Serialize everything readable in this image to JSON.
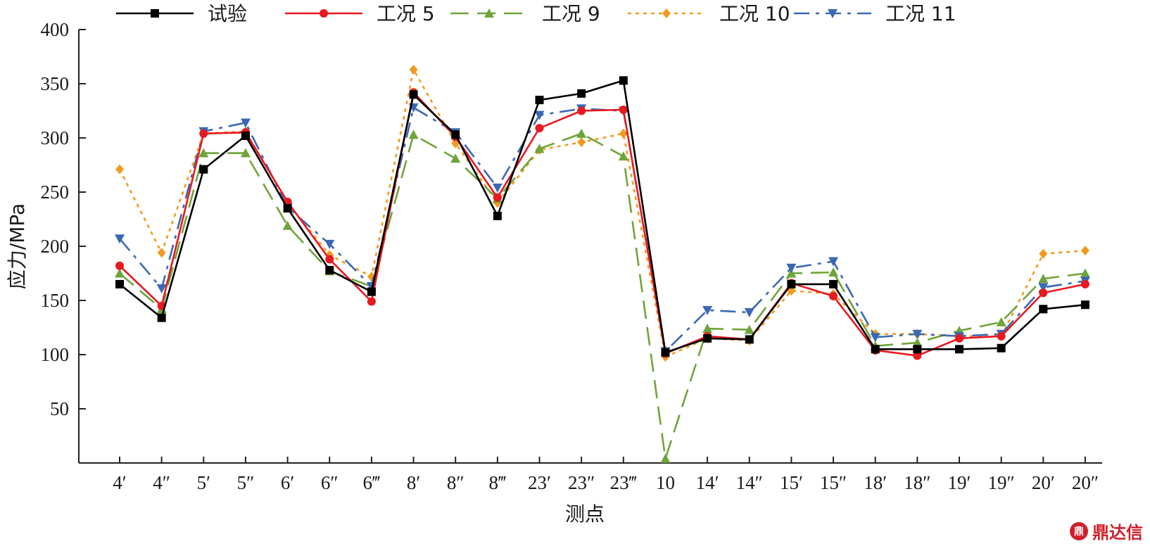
{
  "chart_data": {
    "type": "line",
    "xlabel": "测点",
    "ylabel": "应力/MPa",
    "ylim": [
      0,
      400
    ],
    "yticks": [
      50,
      100,
      150,
      200,
      250,
      300,
      350,
      400
    ],
    "grid": false,
    "legend_position": "top",
    "categories": [
      "4′",
      "4″",
      "5′",
      "5″",
      "6′",
      "6″",
      "6‴",
      "8′",
      "8″",
      "8‴",
      "23′",
      "23″",
      "23‴",
      "10",
      "14′",
      "14″",
      "15′",
      "15″",
      "18′",
      "18″",
      "19′",
      "19″",
      "20′",
      "20″"
    ],
    "series": [
      {
        "name": "试验",
        "color": "#000000",
        "marker": "square",
        "dash": "solid",
        "values": [
          165,
          134,
          271,
          302,
          235,
          178,
          158,
          340,
          303,
          228,
          335,
          341,
          353,
          102,
          115,
          114,
          165,
          165,
          105,
          105,
          105,
          106,
          142,
          146
        ]
      },
      {
        "name": "工况 5",
        "color": "#e8191f",
        "marker": "circle",
        "dash": "solid",
        "values": [
          182,
          145,
          304,
          305,
          241,
          188,
          149,
          342,
          301,
          245,
          309,
          325,
          326,
          101,
          117,
          114,
          166,
          154,
          104,
          99,
          115,
          117,
          157,
          165
        ]
      },
      {
        "name": "工况 9",
        "color": "#6ea43a",
        "marker": "triangle-up",
        "dash": "long-dash",
        "values": [
          175,
          142,
          286,
          286,
          219,
          177,
          163,
          303,
          281,
          244,
          290,
          304,
          283,
          4,
          124,
          123,
          175,
          176,
          108,
          111,
          122,
          130,
          170,
          175
        ]
      },
      {
        "name": "工况 10",
        "color": "#f39a1e",
        "marker": "diamond",
        "dash": "dotted",
        "values": [
          271,
          194,
          304,
          306,
          240,
          192,
          172,
          363,
          295,
          240,
          289,
          296,
          304,
          98,
          115,
          113,
          159,
          156,
          119,
          119,
          117,
          117,
          193,
          196
        ]
      },
      {
        "name": "工况 11",
        "color": "#3a68b4",
        "marker": "triangle-down",
        "dash": "dash-dot",
        "values": [
          207,
          161,
          306,
          314,
          236,
          202,
          163,
          328,
          305,
          254,
          321,
          327,
          325,
          103,
          141,
          139,
          180,
          186,
          116,
          119,
          117,
          119,
          162,
          168
        ]
      }
    ]
  },
  "watermark": {
    "icon": "dingdaxin-logo-icon",
    "icon_glyph": "鼎",
    "text": "鼎达信"
  }
}
